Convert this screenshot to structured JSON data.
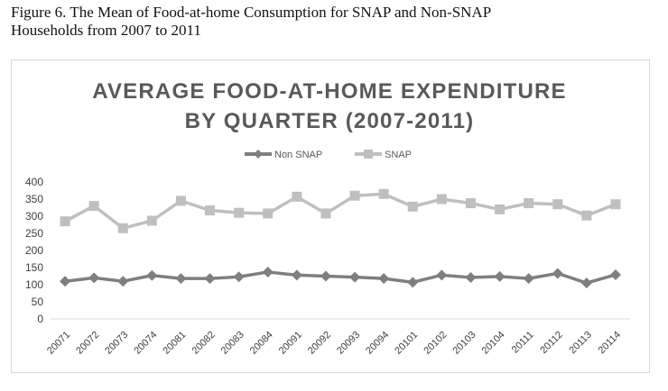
{
  "figure": {
    "caption_line1": "Figure 6. The Mean of Food-at-home Consumption for SNAP and Non-SNAP",
    "caption_line2": "Households from 2007 to 2011"
  },
  "chart_data": {
    "type": "line",
    "title_line1": "AVERAGE FOOD-AT-HOME EXPENDITURE",
    "title_line2": "BY QUARTER (2007-2011)",
    "categories": [
      "20071",
      "20072",
      "20073",
      "20074",
      "20081",
      "20082",
      "20083",
      "20084",
      "20091",
      "20092",
      "20093",
      "20094",
      "20101",
      "20102",
      "20103",
      "20104",
      "20111",
      "20112",
      "20113",
      "20114"
    ],
    "series": [
      {
        "name": "Non SNAP",
        "color": "#7f7f7f",
        "marker": "diamond",
        "values": [
          110,
          120,
          110,
          127,
          118,
          118,
          123,
          137,
          128,
          125,
          122,
          118,
          107,
          128,
          121,
          124,
          118,
          133,
          105,
          129
        ]
      },
      {
        "name": "SNAP",
        "color": "#bfbfbf",
        "marker": "square",
        "values": [
          285,
          330,
          265,
          287,
          345,
          317,
          310,
          308,
          357,
          308,
          360,
          365,
          328,
          350,
          338,
          320,
          338,
          335,
          302,
          335
        ]
      }
    ],
    "yticks": [
      "0",
      "50",
      "100",
      "150",
      "200",
      "250",
      "300",
      "350",
      "400"
    ],
    "ylim": [
      0,
      400
    ],
    "grid": false,
    "legend_position": "top-center"
  }
}
